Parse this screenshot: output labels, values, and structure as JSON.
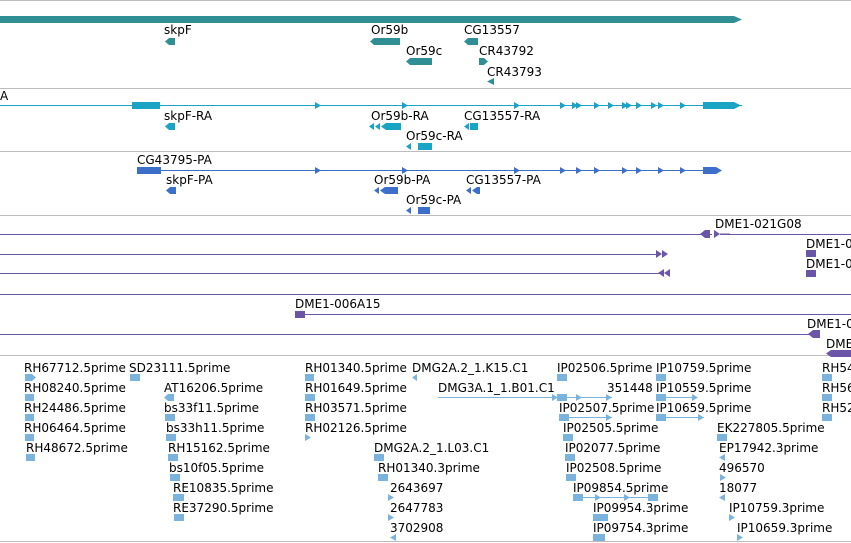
{
  "colors": {
    "gene": "#2f8f95",
    "transcript_ra": "#19a3c4",
    "transcript_pa": "#3c6fc9",
    "clone": "#6b55a6",
    "est": "#7ab3de",
    "border": "#bdbdbd"
  },
  "genes": {
    "skpF": "skpF",
    "Or59b": "Or59b",
    "Or59c": "Or59c",
    "CG13557": "CG13557",
    "CR43792": "CR43792",
    "CR43793": "CR43793"
  },
  "transcripts_ra": {
    "edge": "A",
    "skpF_RA": "skpF-RA",
    "Or59b_RA": "Or59b-RA",
    "Or59c_RA": "Or59c-RA",
    "CG13557_RA": "CG13557-RA"
  },
  "transcripts_pa": {
    "CG43795_PA": "CG43795-PA",
    "skpF_PA": "skpF-PA",
    "Or59b_PA": "Or59b-PA",
    "Or59c_PA": "Or59c-PA",
    "CG13557_PA": "CG13557-PA"
  },
  "clones": {
    "c1": "DME1-021G08",
    "c2": "DME1-0",
    "c3": "DME1-0",
    "c4": "DME1-006A15",
    "c5": "DME1-0",
    "c6": "DME"
  },
  "ests": {
    "e1": "RH67712.5prime",
    "e2": "SD23111.5prime",
    "e3": "RH08240.5prime",
    "e4": "AT16206.5prime",
    "e5": "RH24486.5prime",
    "e6": "bs33f11.5prime",
    "e7": "RH06464.5prime",
    "e8": "bs33h11.5prime",
    "e9": "RH48672.5prime",
    "e10": "RH15162.5prime",
    "e11": "bs10f05.5prime",
    "e12": "RE10835.5prime",
    "e13": "RE37290.5prime",
    "e14": "RH01340.5prime",
    "e15": "DMG2A.2_1.K15.C1",
    "e16": "RH01649.5prime",
    "e17": "DMG3A.1_1.B01.C1",
    "e18": "RH03571.5prime",
    "e19": "RH02126.5prime",
    "e20": "DMG2A.2_1.L03.C1",
    "e21": "RH01340.3prime",
    "e22": "2643697",
    "e23": "2647783",
    "e24": "3702908",
    "e25": "IP02506.5prime",
    "e26": "IP10759.5prime",
    "e27": "351448",
    "e28": "IP10559.5prime",
    "e29": "IP02507.5prime",
    "e30": "IP10659.5prime",
    "e31": "IP02505.5prime",
    "e32": "EK227805.5prime",
    "e33": "IP02077.5prime",
    "e34": "EP17942.3prime",
    "e35": "IP02508.5prime",
    "e36": "496570",
    "e37": "IP09854.5prime",
    "e38": "18077",
    "e39": "IP09954.3prime",
    "e40": "IP10759.3prime",
    "e41": "IP09754.3prime",
    "e42": "IP10659.3prime",
    "e43": "RH54",
    "e44": "RH56",
    "e45": "RH52"
  }
}
